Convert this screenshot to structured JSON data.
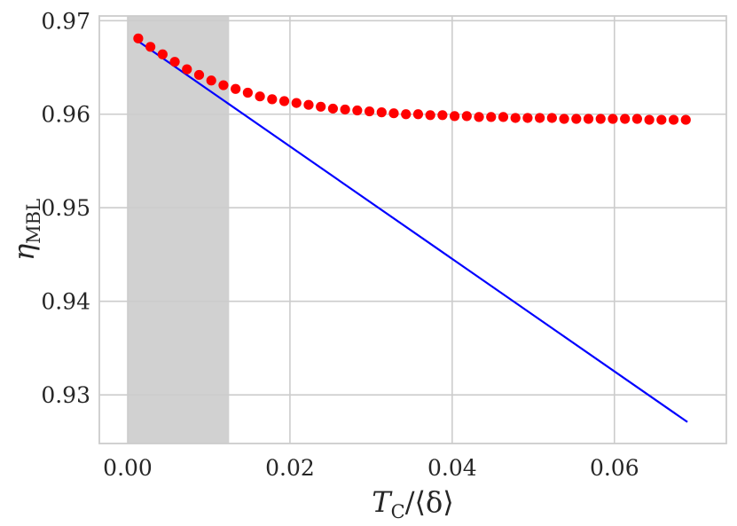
{
  "chart_data": {
    "type": "scatter",
    "title": "",
    "xlabel": {
      "main": "T",
      "sub": "C",
      "rest": "/⟨δ⟩"
    },
    "ylabel": {
      "main": "η",
      "sub": "MBL"
    },
    "xlim": [
      -0.0035,
      0.0738
    ],
    "ylim": [
      0.9248,
      0.9705
    ],
    "x_ticks": [
      0.0,
      0.02,
      0.04,
      0.06
    ],
    "x_tick_labels": [
      "0.00",
      "0.02",
      "0.04",
      "0.06"
    ],
    "y_ticks": [
      0.93,
      0.94,
      0.95,
      0.96,
      0.97
    ],
    "y_tick_labels": [
      "0.93",
      "0.94",
      "0.95",
      "0.96",
      "0.97"
    ],
    "grid": true,
    "shaded_region": {
      "x": [
        0.0,
        0.0125
      ],
      "color": "#cccccc"
    },
    "series": [
      {
        "kind": "line",
        "color": "#0000ff",
        "x": [
          0.0013,
          0.069
        ],
        "y": [
          0.9678,
          0.9271
        ]
      },
      {
        "kind": "scatter",
        "color": "#ff0000",
        "x": [
          0.0013,
          0.0028,
          0.0043,
          0.0058,
          0.0073,
          0.0088,
          0.0103,
          0.0118,
          0.0133,
          0.0148,
          0.0163,
          0.0178,
          0.0193,
          0.0208,
          0.0223,
          0.0238,
          0.0253,
          0.0268,
          0.0283,
          0.0298,
          0.0313,
          0.0328,
          0.0343,
          0.0358,
          0.0373,
          0.0388,
          0.0403,
          0.0418,
          0.0433,
          0.0448,
          0.0463,
          0.0478,
          0.0493,
          0.0508,
          0.0523,
          0.0538,
          0.0553,
          0.0568,
          0.0583,
          0.0598,
          0.0613,
          0.0628,
          0.0643,
          0.0658,
          0.0673,
          0.0688
        ],
        "y": [
          0.9681,
          0.9672,
          0.9664,
          0.9656,
          0.9648,
          0.9642,
          0.9636,
          0.9631,
          0.9627,
          0.9623,
          0.9619,
          0.9616,
          0.9614,
          0.9612,
          0.961,
          0.9608,
          0.9606,
          0.9605,
          0.9604,
          0.9603,
          0.9602,
          0.9601,
          0.96,
          0.96,
          0.9599,
          0.9599,
          0.9598,
          0.9598,
          0.9597,
          0.9597,
          0.9597,
          0.9596,
          0.9596,
          0.9596,
          0.9596,
          0.9595,
          0.9595,
          0.9595,
          0.9595,
          0.9595,
          0.9595,
          0.9595,
          0.9594,
          0.9594,
          0.9594,
          0.9594
        ]
      }
    ]
  }
}
